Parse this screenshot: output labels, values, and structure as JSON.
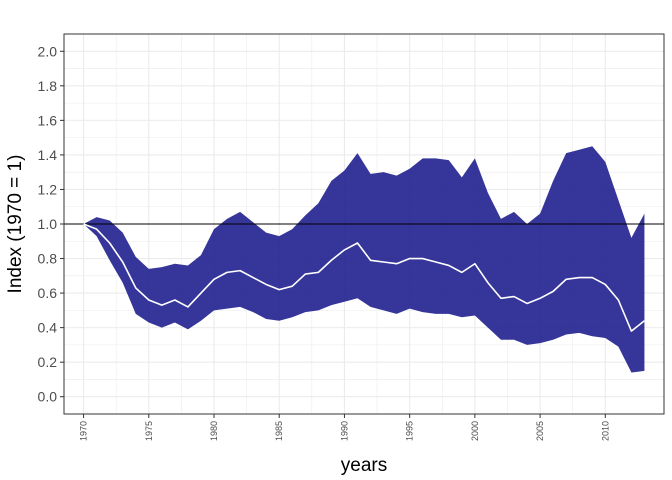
{
  "chart_data": {
    "type": "area",
    "title": "",
    "xlabel": "years",
    "ylabel": "Index (1970 = 1)",
    "xlim": [
      1968.5,
      2014.5
    ],
    "ylim": [
      -0.1,
      2.1
    ],
    "reference_line": 1.0,
    "grid": true,
    "x_ticks": [
      1970,
      1975,
      1980,
      1985,
      1990,
      1995,
      2000,
      2005,
      2010
    ],
    "y_ticks": [
      0.0,
      0.2,
      0.4,
      0.6,
      0.8,
      1.0,
      1.2,
      1.4,
      1.6,
      1.8,
      2.0
    ],
    "y_tick_labels": [
      "0.0",
      "0.2",
      "0.4",
      "0.6",
      "0.8",
      "1.0",
      "1.2",
      "1.4",
      "1.6",
      "1.8",
      "2.0"
    ],
    "colors": {
      "band": "#1a1a8c",
      "line": "#ffffff",
      "reference": "#000000",
      "grid": "#ebebeb",
      "panel_border": "#333333"
    },
    "x": [
      1970,
      1971,
      1972,
      1973,
      1974,
      1975,
      1976,
      1977,
      1978,
      1979,
      1980,
      1981,
      1982,
      1983,
      1984,
      1985,
      1986,
      1987,
      1988,
      1989,
      1990,
      1991,
      1992,
      1993,
      1994,
      1995,
      1996,
      1997,
      1998,
      1999,
      2000,
      2001,
      2002,
      2003,
      2004,
      2005,
      2006,
      2007,
      2008,
      2009,
      2010,
      2011,
      2012,
      2013
    ],
    "series": [
      {
        "values": [
          1.0,
          1.04,
          1.02,
          0.95,
          0.81,
          0.74,
          0.75,
          0.77,
          0.76,
          0.82,
          0.97,
          1.03,
          1.07,
          1.01,
          0.95,
          0.93,
          0.97,
          1.05,
          1.12,
          1.25,
          1.31,
          1.41,
          1.29,
          1.3,
          1.28,
          1.32,
          1.38,
          1.38,
          1.37,
          1.27,
          1.38,
          1.18,
          1.03,
          1.07,
          1.0,
          1.06,
          1.25,
          1.41,
          1.43,
          1.45,
          1.36,
          1.14,
          0.92,
          1.06
        ]
      },
      {
        "values": [
          1.0,
          0.97,
          0.89,
          0.78,
          0.63,
          0.56,
          0.53,
          0.56,
          0.52,
          0.6,
          0.68,
          0.72,
          0.73,
          0.69,
          0.65,
          0.62,
          0.64,
          0.71,
          0.72,
          0.79,
          0.85,
          0.89,
          0.79,
          0.78,
          0.77,
          0.8,
          0.8,
          0.78,
          0.76,
          0.72,
          0.77,
          0.66,
          0.57,
          0.58,
          0.54,
          0.57,
          0.61,
          0.68,
          0.69,
          0.69,
          0.65,
          0.56,
          0.38,
          0.44
        ]
      },
      {
        "values": [
          1.0,
          0.93,
          0.79,
          0.66,
          0.48,
          0.43,
          0.4,
          0.43,
          0.39,
          0.44,
          0.5,
          0.51,
          0.52,
          0.49,
          0.45,
          0.44,
          0.46,
          0.49,
          0.5,
          0.53,
          0.55,
          0.57,
          0.52,
          0.5,
          0.48,
          0.51,
          0.49,
          0.48,
          0.48,
          0.46,
          0.47,
          0.4,
          0.33,
          0.33,
          0.3,
          0.31,
          0.33,
          0.36,
          0.37,
          0.35,
          0.34,
          0.29,
          0.14,
          0.15
        ]
      }
    ]
  }
}
